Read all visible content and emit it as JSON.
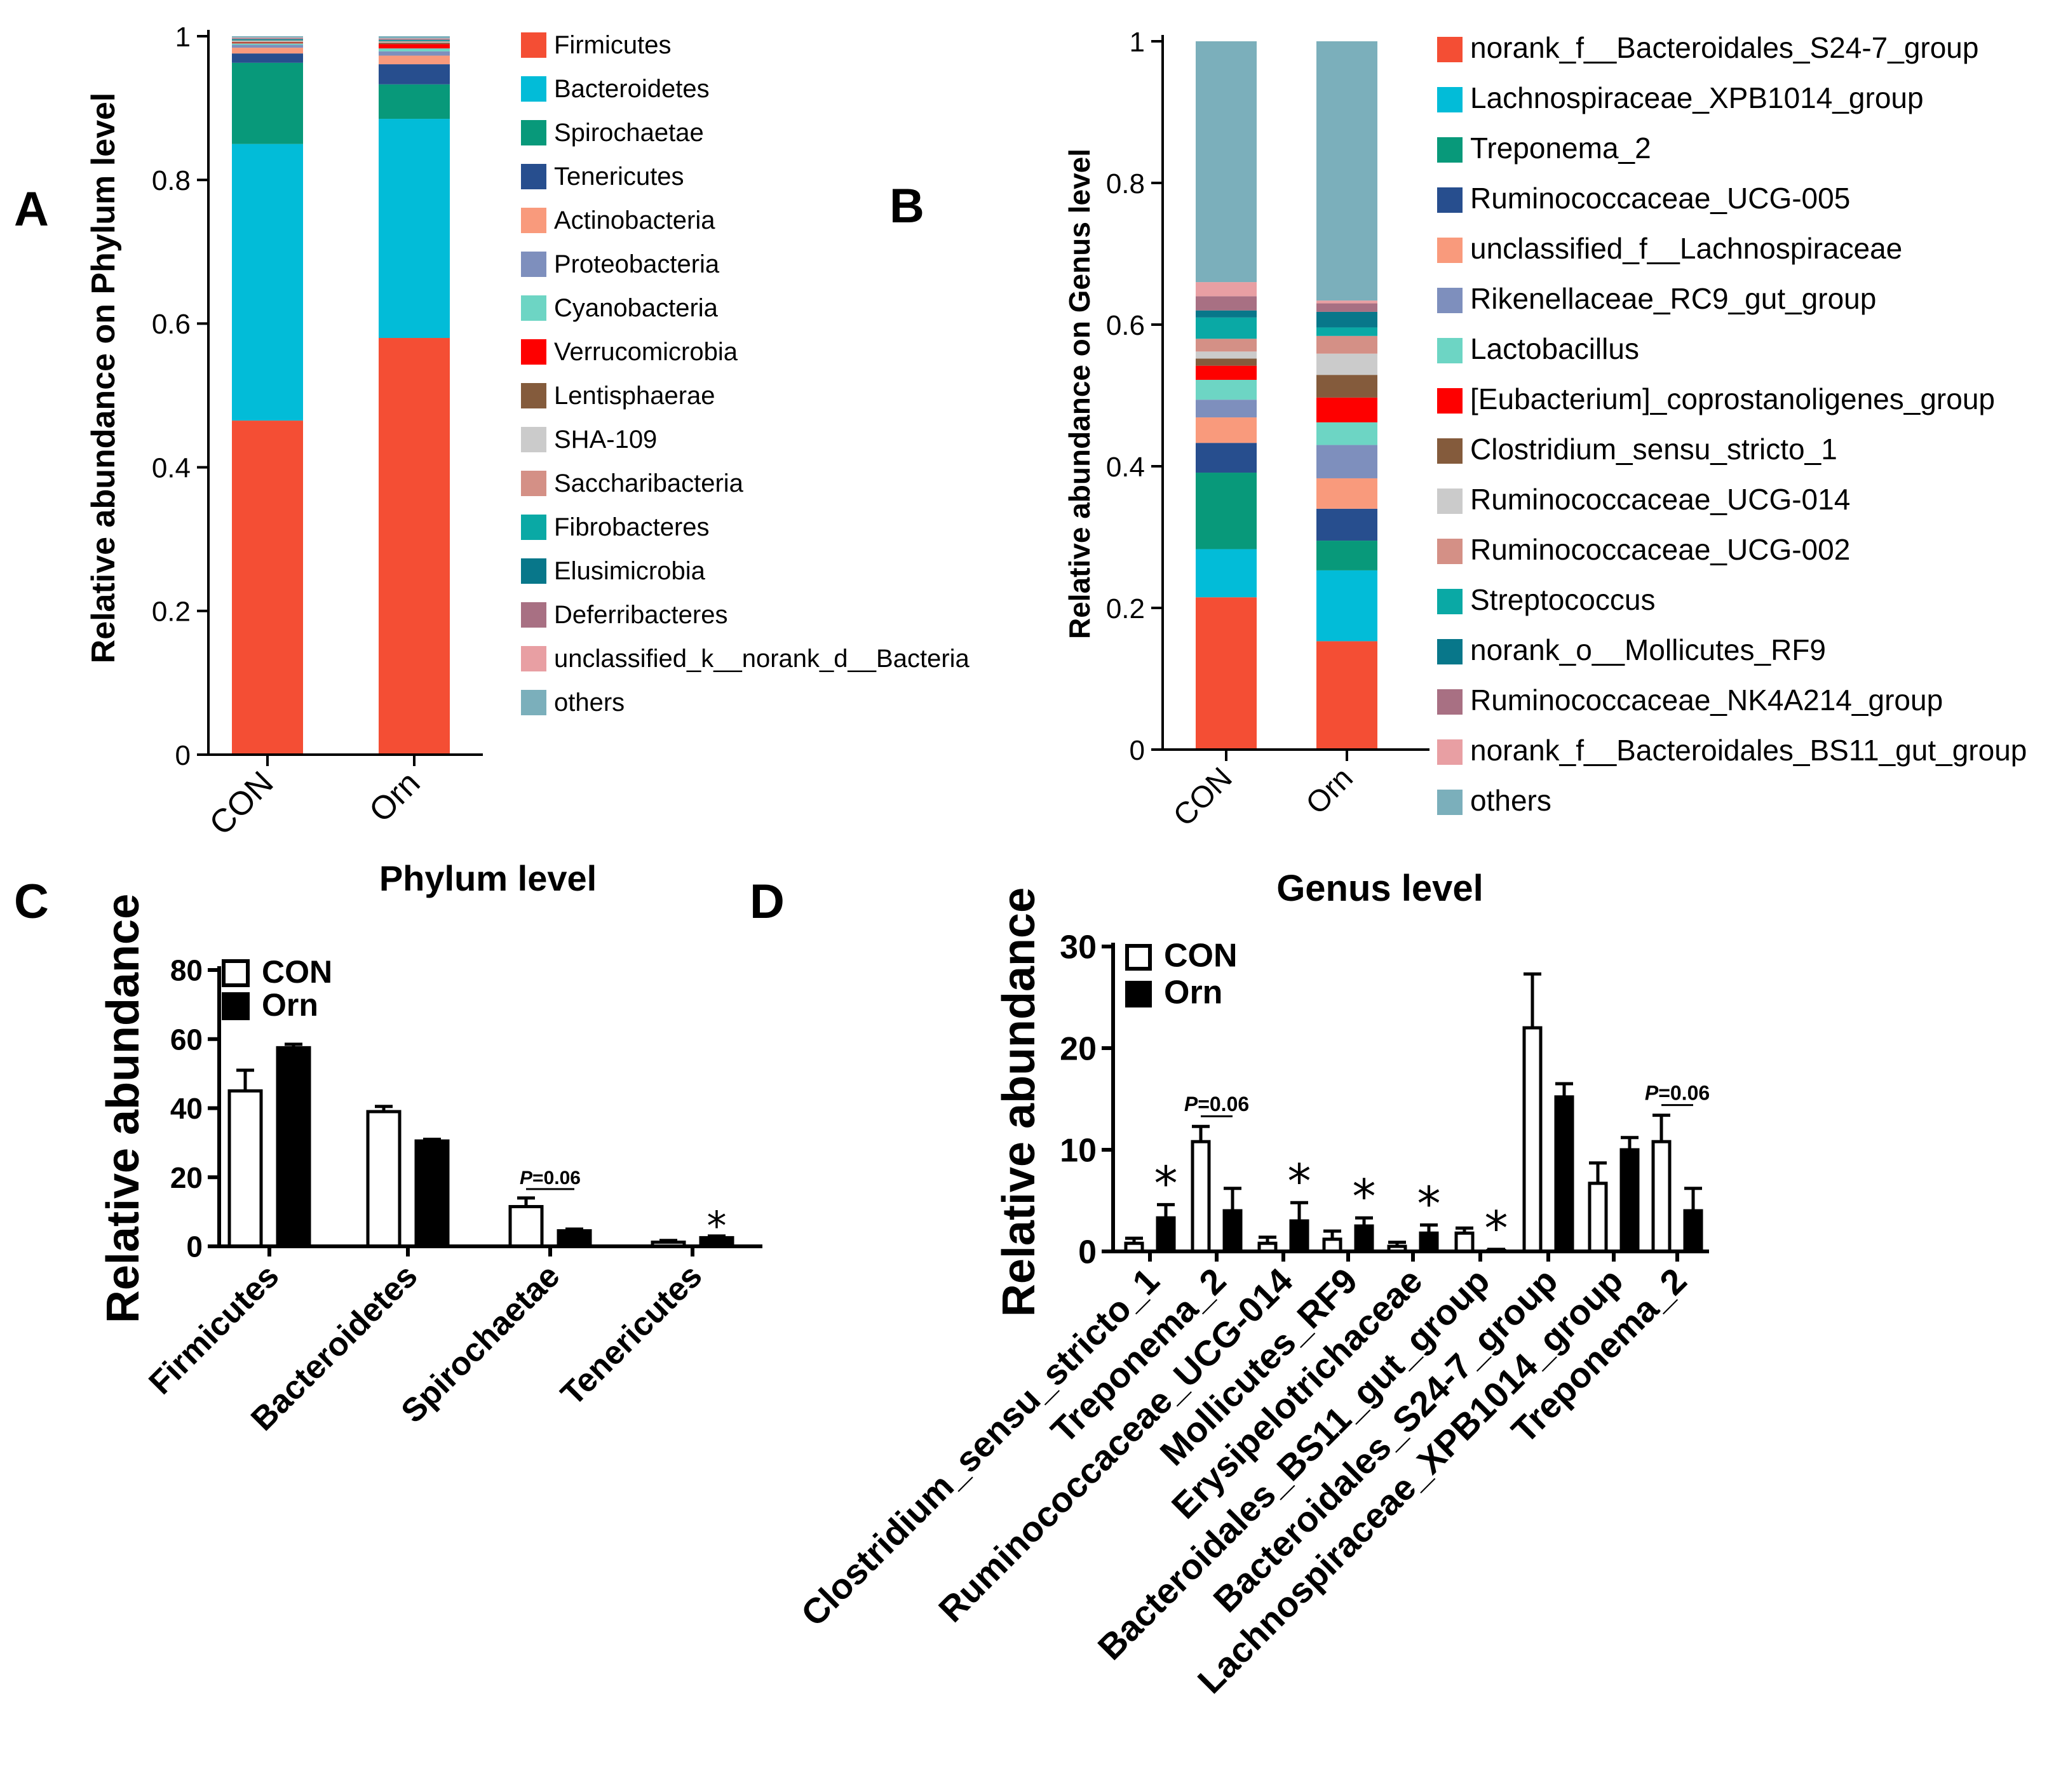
{
  "figure": {
    "panel_labels": [
      "A",
      "B",
      "C",
      "D"
    ]
  },
  "chart_data": [
    {
      "id": "A",
      "type": "bar",
      "stacked": true,
      "ylabel": "Relative abundance on Phylum level",
      "categories": [
        "CON",
        "Orn"
      ],
      "ylim": [
        0,
        1
      ],
      "yticks": [
        "0",
        "0.2",
        "0.4",
        "0.6",
        "0.8",
        "1"
      ],
      "legend_position": "right",
      "series": [
        {
          "name": "Firmicutes",
          "color": "#f44e34",
          "values": [
            0.465,
            0.58
          ]
        },
        {
          "name": "Bacteroidetes",
          "color": "#02bcd8",
          "values": [
            0.385,
            0.305
          ]
        },
        {
          "name": "Spirochaetae",
          "color": "#08997a",
          "values": [
            0.113,
            0.048
          ]
        },
        {
          "name": "Tenericutes",
          "color": "#274e8e",
          "values": [
            0.013,
            0.028
          ]
        },
        {
          "name": "Actinobacteria",
          "color": "#f99a7c",
          "values": [
            0.008,
            0.012
          ]
        },
        {
          "name": "Proteobacteria",
          "color": "#7e8fbd",
          "values": [
            0.004,
            0.006
          ]
        },
        {
          "name": "Cyanobacteria",
          "color": "#6dd5c4",
          "values": [
            0.002,
            0.004
          ]
        },
        {
          "name": "Verrucomicrobia",
          "color": "#fe0000",
          "values": [
            0.001,
            0.006
          ]
        },
        {
          "name": "Lentisphaerae",
          "color": "#845b3c",
          "values": [
            0.001,
            0.002
          ]
        },
        {
          "name": "SHA-109",
          "color": "#cbcbcb",
          "values": [
            0.001,
            0.001
          ]
        },
        {
          "name": "Saccharibacteria",
          "color": "#d49086",
          "values": [
            0.001,
            0.001
          ]
        },
        {
          "name": "Fibrobacteres",
          "color": "#0aa9a5",
          "values": [
            0.001,
            0.001
          ]
        },
        {
          "name": "Elusimicrobia",
          "color": "#08778a",
          "values": [
            0.001,
            0.001
          ]
        },
        {
          "name": "Deferribacteres",
          "color": "#a87083",
          "values": [
            0.001,
            0.001
          ]
        },
        {
          "name": "unclassified_k__norank_d__Bacteria",
          "color": "#e89fa3",
          "values": [
            0.001,
            0.001
          ]
        },
        {
          "name": "others",
          "color": "#7bafbb",
          "values": [
            0.002,
            0.003
          ]
        }
      ]
    },
    {
      "id": "B",
      "type": "bar",
      "stacked": true,
      "ylabel": "Relative abundance on Genus level",
      "categories": [
        "CON",
        "Orn"
      ],
      "ylim": [
        0,
        1
      ],
      "yticks": [
        "0",
        "0.2",
        "0.4",
        "0.6",
        "0.8",
        "1"
      ],
      "legend_position": "right",
      "series": [
        {
          "name": "norank_f__Bacteroidales_S24-7_group",
          "color": "#f44e34",
          "values": [
            0.215,
            0.153
          ]
        },
        {
          "name": "Lachnospiraceae_XPB1014_group",
          "color": "#02bcd8",
          "values": [
            0.068,
            0.1
          ]
        },
        {
          "name": "Treponema_2",
          "color": "#08997a",
          "values": [
            0.108,
            0.042
          ]
        },
        {
          "name": "Ruminococcaceae_UCG-005",
          "color": "#274e8e",
          "values": [
            0.042,
            0.045
          ]
        },
        {
          "name": "unclassified_f__Lachnospiraceae",
          "color": "#f99a7c",
          "values": [
            0.036,
            0.043
          ]
        },
        {
          "name": "Rikenellaceae_RC9_gut_group",
          "color": "#7e8fbd",
          "values": [
            0.025,
            0.047
          ]
        },
        {
          "name": "Lactobacillus",
          "color": "#6dd5c4",
          "values": [
            0.028,
            0.032
          ]
        },
        {
          "name": "[Eubacterium]_coprostanoligenes_group",
          "color": "#fe0000",
          "values": [
            0.02,
            0.035
          ]
        },
        {
          "name": "Clostridium_sensu_stricto_1",
          "color": "#845b3c",
          "values": [
            0.01,
            0.032
          ]
        },
        {
          "name": "Ruminococcaceae_UCG-014",
          "color": "#cbcbcb",
          "values": [
            0.01,
            0.03
          ]
        },
        {
          "name": "Ruminococcaceae_UCG-002",
          "color": "#d49086",
          "values": [
            0.018,
            0.025
          ]
        },
        {
          "name": "Streptococcus",
          "color": "#0aa9a5",
          "values": [
            0.03,
            0.012
          ]
        },
        {
          "name": "norank_o__Mollicutes_RF9",
          "color": "#08778a",
          "values": [
            0.01,
            0.022
          ]
        },
        {
          "name": "Ruminococcaceae_NK4A214_group",
          "color": "#a87083",
          "values": [
            0.02,
            0.012
          ]
        },
        {
          "name": "norank_f__Bacteroidales_BS11_gut_group",
          "color": "#e89fa3",
          "values": [
            0.02,
            0.004
          ]
        },
        {
          "name": "others",
          "color": "#7bafbb",
          "values": [
            0.34,
            0.366
          ]
        }
      ]
    },
    {
      "id": "C",
      "type": "bar",
      "title": "Phylum level",
      "ylabel": "Relative abundance",
      "categories": [
        "Firmicutes",
        "Bacteroidetes",
        "Spirochaetae",
        "Tenericutes"
      ],
      "ylim": [
        0,
        80
      ],
      "yticks": [
        "0",
        "20",
        "40",
        "60",
        "80"
      ],
      "legend_position": "top-left",
      "series": [
        {
          "name": "CON",
          "fill": "#ffffff",
          "values": [
            45,
            39,
            11.5,
            1.2
          ],
          "errors": [
            6,
            1.5,
            2.5,
            0.5
          ]
        },
        {
          "name": "Orn",
          "fill": "#000000",
          "values": [
            57.5,
            30.5,
            4.5,
            2.5
          ],
          "errors": [
            1,
            0.5,
            0.5,
            0.5
          ]
        }
      ],
      "annotations": [
        {
          "category": "Spirochaetae",
          "text": "P=0.06",
          "p_italic": "P",
          "p_rest": "=0.06"
        },
        {
          "category": "Tenericutes",
          "text": "*"
        }
      ]
    },
    {
      "id": "D",
      "type": "bar",
      "title": "Genus level",
      "ylabel": "Relative abundance",
      "categories": [
        "Clostridium_sensu_stricto_1",
        "Treponema_2",
        "Ruminococcaceae_UCG-014",
        "Mollicutes_RF9",
        "Erysipelotrichaceae",
        "Bacteroidales_BS11_gut_group",
        "Bacteroidales_S24-7_group",
        "Lachnospiraceae_XPB1014_group",
        "Treponema_2"
      ],
      "ylim": [
        0,
        30
      ],
      "yticks": [
        "0",
        "10",
        "20",
        "30"
      ],
      "legend_position": "top-left",
      "series": [
        {
          "name": "CON",
          "fill": "#ffffff",
          "values": [
            0.8,
            10.8,
            0.8,
            1.2,
            0.5,
            1.8,
            22,
            6.7,
            10.8
          ],
          "errors": [
            0.5,
            1.5,
            0.6,
            0.8,
            0.4,
            0.5,
            5.3,
            2,
            2.6
          ]
        },
        {
          "name": "Orn",
          "fill": "#000000",
          "values": [
            3.3,
            4,
            3,
            2.5,
            1.8,
            0.1,
            15.2,
            10,
            4
          ],
          "errors": [
            1.3,
            2.2,
            1.8,
            0.8,
            0.8,
            0.1,
            1.3,
            1.2,
            2.2
          ]
        }
      ],
      "annotations": [
        {
          "category_index": 0,
          "text": "*"
        },
        {
          "category_index": 1,
          "text": "P=0.06",
          "p_italic": "P",
          "p_rest": "=0.06"
        },
        {
          "category_index": 2,
          "text": "*"
        },
        {
          "category_index": 3,
          "text": "*"
        },
        {
          "category_index": 4,
          "text": "*"
        },
        {
          "category_index": 5,
          "text": "*"
        },
        {
          "category_index": 8,
          "text": "P=0.06",
          "p_italic": "P",
          "p_rest": "=0.06"
        }
      ]
    }
  ]
}
